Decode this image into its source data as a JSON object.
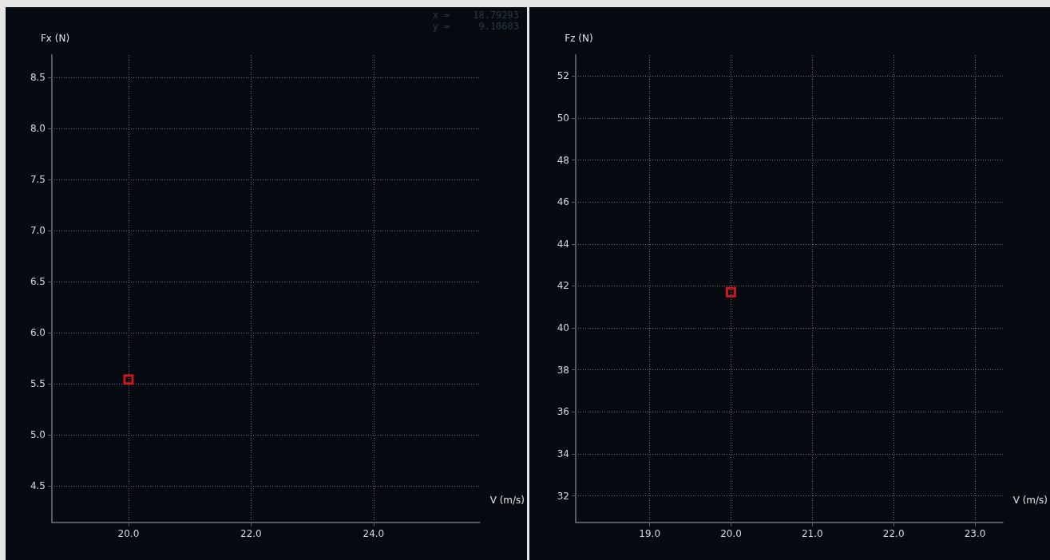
{
  "chart_data": [
    {
      "type": "scatter",
      "xlabel": "V (m/s)",
      "ylabel": "Fx (N)",
      "x": [
        20.0
      ],
      "values": [
        5.54
      ],
      "color": "#ff1a1a",
      "marker": "square",
      "grid": true,
      "xlim": [
        18.75,
        25.73
      ],
      "xticks": [
        {
          "value": 20,
          "label": "20.0"
        },
        {
          "value": 22,
          "label": "22.0"
        },
        {
          "value": 24,
          "label": "24.0"
        }
      ],
      "ylim": [
        4.14,
        8.72
      ],
      "yticks": [
        4.5,
        {
          "value": 5,
          "label": "5.0"
        },
        5.5,
        {
          "value": 6,
          "label": "6.0"
        },
        6.5,
        {
          "value": 7,
          "label": "7.0"
        },
        7.5,
        {
          "value": 8,
          "label": "8.0"
        },
        8.5
      ],
      "annotations": [
        "x =    18.79293",
        "y =     9.10603"
      ]
    },
    {
      "type": "scatter",
      "xlabel": "V (m/s)",
      "ylabel": "Fz (N)",
      "x": [
        20.0
      ],
      "values": [
        41.7
      ],
      "color": "#ff1a1a",
      "marker": "square",
      "grid": true,
      "xlim": [
        18.09,
        23.34
      ],
      "xticks": [
        {
          "value": 19,
          "label": "19.0"
        },
        {
          "value": 20,
          "label": "20.0"
        },
        {
          "value": 21,
          "label": "21.0"
        },
        {
          "value": 22,
          "label": "22.0"
        },
        {
          "value": 23,
          "label": "23.0"
        }
      ],
      "ylim": [
        30.73,
        53.0
      ],
      "yticks": [
        32,
        34,
        36,
        38,
        40,
        42,
        44,
        46,
        48,
        50,
        52
      ]
    }
  ]
}
